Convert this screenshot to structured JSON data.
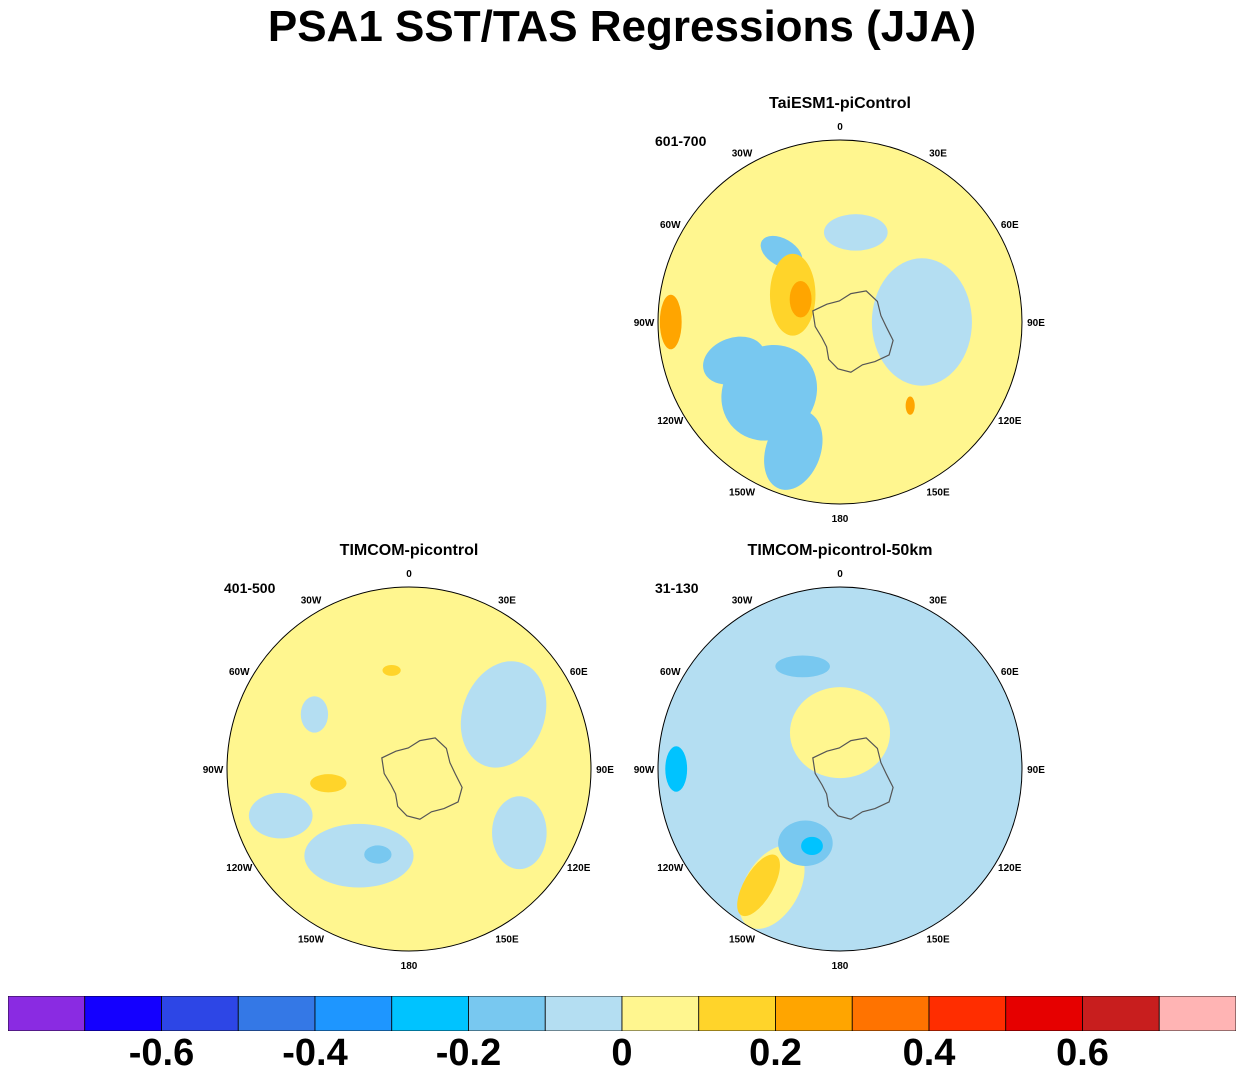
{
  "title": "PSA1 SST/TAS Regressions (JJA)",
  "chart_data": [
    {
      "type": "heatmap",
      "projection": "south-polar-stereographic",
      "title": "TaiESM1-piControl",
      "period": "601-700",
      "lon_labels": [
        "0",
        "30E",
        "60E",
        "90E",
        "120E",
        "150E",
        "180",
        "150W",
        "120W",
        "90W",
        "60W",
        "30W"
      ],
      "background_level": 0.05,
      "regions": [
        {
          "lon": -135,
          "r": 0.55,
          "w": 0.55,
          "h": 0.5,
          "rot": -45,
          "v": -0.15
        },
        {
          "lon": -160,
          "r": 0.75,
          "w": 0.45,
          "h": 0.3,
          "rot": -70,
          "v": -0.15
        },
        {
          "lon": -110,
          "r": 0.62,
          "w": 0.35,
          "h": 0.25,
          "rot": -20,
          "v": -0.15
        },
        {
          "lon": 90,
          "r": 0.45,
          "w": 0.55,
          "h": 0.7,
          "rot": 0,
          "v": -0.05
        },
        {
          "lon": 10,
          "r": 0.5,
          "w": 0.35,
          "h": 0.2,
          "rot": 0,
          "v": -0.05
        },
        {
          "lon": -40,
          "r": 0.5,
          "w": 0.25,
          "h": 0.15,
          "rot": 30,
          "v": -0.15
        },
        {
          "lon": -60,
          "r": 0.3,
          "w": 0.25,
          "h": 0.45,
          "rot": 0,
          "v": 0.15
        },
        {
          "lon": -60,
          "r": 0.25,
          "w": 0.12,
          "h": 0.2,
          "rot": 0,
          "v": 0.25
        },
        {
          "lon": -90,
          "r": 0.93,
          "w": 0.12,
          "h": 0.3,
          "rot": 0,
          "v": 0.25
        },
        {
          "lon": 140,
          "r": 0.6,
          "w": 0.05,
          "h": 0.1,
          "rot": 0,
          "v": 0.25
        }
      ]
    },
    {
      "type": "heatmap",
      "projection": "south-polar-stereographic",
      "title": "TIMCOM-picontrol",
      "period": "401-500",
      "lon_labels": [
        "0",
        "30E",
        "60E",
        "90E",
        "120E",
        "150E",
        "180",
        "150W",
        "120W",
        "90W",
        "60W",
        "30W"
      ],
      "background_level": 0.05,
      "regions": [
        {
          "lon": 60,
          "r": 0.6,
          "w": 0.45,
          "h": 0.6,
          "rot": 20,
          "v": -0.05
        },
        {
          "lon": 120,
          "r": 0.7,
          "w": 0.3,
          "h": 0.4,
          "rot": 0,
          "v": -0.05
        },
        {
          "lon": -150,
          "r": 0.55,
          "w": 0.6,
          "h": 0.35,
          "rot": 0,
          "v": -0.05
        },
        {
          "lon": -110,
          "r": 0.75,
          "w": 0.35,
          "h": 0.25,
          "rot": 0,
          "v": -0.05
        },
        {
          "lon": -160,
          "r": 0.5,
          "w": 0.15,
          "h": 0.1,
          "rot": 0,
          "v": -0.15
        },
        {
          "lon": -60,
          "r": 0.6,
          "w": 0.15,
          "h": 0.2,
          "rot": 0,
          "v": -0.05
        },
        {
          "lon": -100,
          "r": 0.45,
          "w": 0.2,
          "h": 0.1,
          "rot": 0,
          "v": 0.15
        },
        {
          "lon": -10,
          "r": 0.55,
          "w": 0.1,
          "h": 0.06,
          "rot": 0,
          "v": 0.15
        }
      ]
    },
    {
      "type": "heatmap",
      "projection": "south-polar-stereographic",
      "title": "TIMCOM-picontrol-50km",
      "period": "31-130",
      "lon_labels": [
        "0",
        "30E",
        "60E",
        "90E",
        "120E",
        "150E",
        "180",
        "150W",
        "120W",
        "90W",
        "60W",
        "30W"
      ],
      "background_level": -0.05,
      "regions": [
        {
          "lon": 0,
          "r": 0.2,
          "w": 0.55,
          "h": 0.5,
          "rot": 0,
          "v": 0.05
        },
        {
          "lon": -150,
          "r": 0.75,
          "w": 0.5,
          "h": 0.3,
          "rot": -60,
          "v": 0.05
        },
        {
          "lon": -145,
          "r": 0.78,
          "w": 0.38,
          "h": 0.16,
          "rot": -60,
          "v": 0.15
        },
        {
          "lon": -155,
          "r": 0.45,
          "w": 0.3,
          "h": 0.25,
          "rot": 0,
          "v": -0.15
        },
        {
          "lon": -160,
          "r": 0.45,
          "w": 0.12,
          "h": 0.1,
          "rot": 0,
          "v": -0.25
        },
        {
          "lon": -90,
          "r": 0.9,
          "w": 0.12,
          "h": 0.25,
          "rot": 0,
          "v": -0.25
        },
        {
          "lon": -20,
          "r": 0.6,
          "w": 0.3,
          "h": 0.12,
          "rot": 0,
          "v": -0.15
        }
      ]
    }
  ],
  "colorbar": {
    "colors": [
      "#8a2be2",
      "#1400ff",
      "#2d46e6",
      "#3478e6",
      "#1e96ff",
      "#00c3ff",
      "#78c8f0",
      "#b4def2",
      "#fff68f",
      "#ffd42a",
      "#ffa500",
      "#ff7300",
      "#ff2d00",
      "#e60000",
      "#c81e1e",
      "#ffb4b4"
    ],
    "tick_labels": [
      "-0.6",
      "-0.4",
      "-0.2",
      "0",
      "0.2",
      "0.4",
      "0.6"
    ],
    "tick_values": [
      -0.6,
      -0.4,
      -0.2,
      0,
      0.2,
      0.4,
      0.6
    ],
    "levels": [
      -0.7,
      -0.6,
      -0.5,
      -0.4,
      -0.3,
      -0.2,
      -0.1,
      0,
      0.1,
      0.2,
      0.3,
      0.4,
      0.5,
      0.6,
      0.7
    ]
  }
}
